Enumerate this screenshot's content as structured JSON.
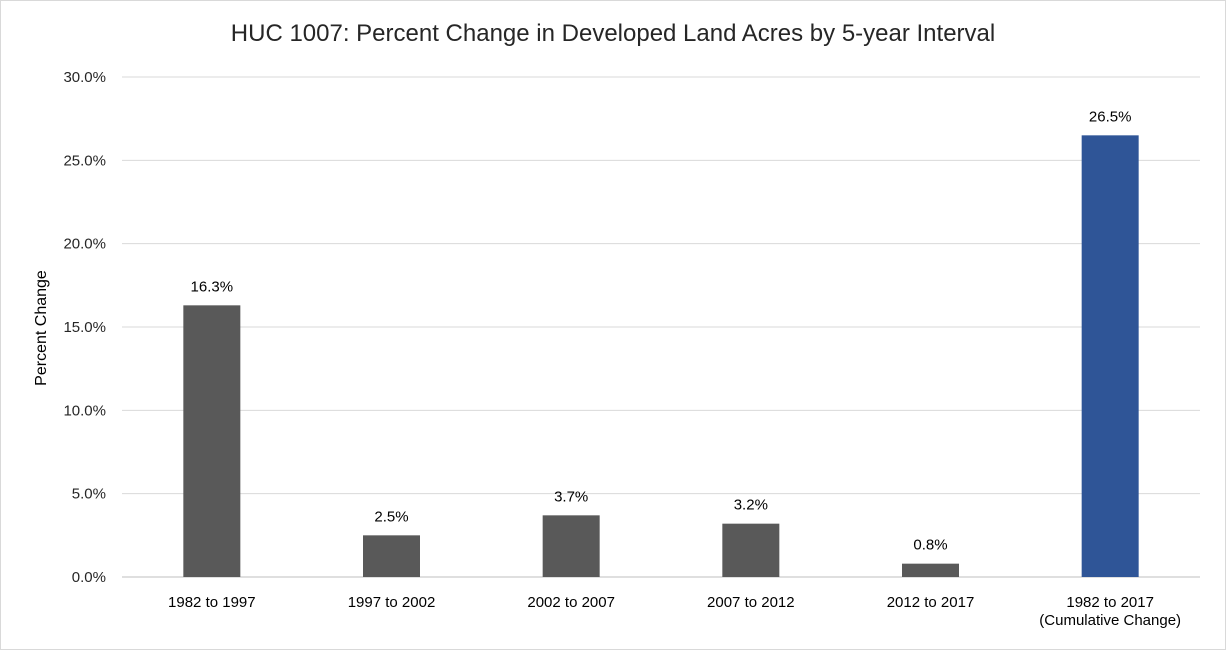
{
  "chart_data": {
    "type": "bar",
    "title": "HUC 1007: Percent Change in Developed Land Acres by 5-year Interval",
    "ylabel": "Percent Change",
    "xlabel": "",
    "categories": [
      [
        "1982  to 1997"
      ],
      [
        "1997  to 2002"
      ],
      [
        "2002  to 2007"
      ],
      [
        "2007  to 2012"
      ],
      [
        "2012  to 2017"
      ],
      [
        "1982 to 2017",
        "(Cumulative Change)"
      ]
    ],
    "values": [
      16.3,
      2.5,
      3.7,
      3.2,
      0.8,
      26.5
    ],
    "data_labels": [
      "16.3%",
      "2.5%",
      "3.7%",
      "3.2%",
      "0.8%",
      "26.5%"
    ],
    "bar_colors": [
      "#595959",
      "#595959",
      "#595959",
      "#595959",
      "#595959",
      "#2f5597"
    ],
    "ylim": [
      0,
      30
    ],
    "yticks": [
      0,
      5,
      10,
      15,
      20,
      25,
      30
    ],
    "ytick_labels": [
      "0.0%",
      "5.0%",
      "10.0%",
      "15.0%",
      "20.0%",
      "25.0%",
      "30.0%"
    ],
    "grid": true,
    "legend": "none"
  }
}
